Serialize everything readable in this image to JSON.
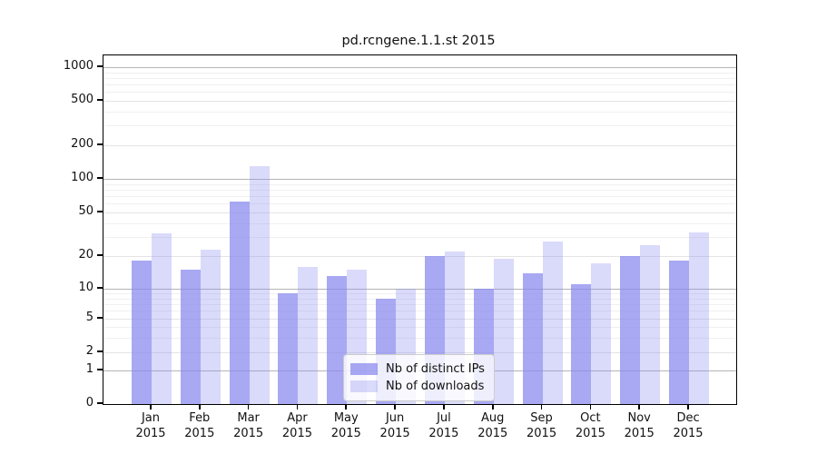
{
  "figure": {
    "background": "#ffffff"
  },
  "chart_data": {
    "type": "bar",
    "title": "pd.rcngene.1.1.st 2015",
    "xlabel": "",
    "ylabel": "",
    "year": "2015",
    "categories": [
      "Jan",
      "Feb",
      "Mar",
      "Apr",
      "May",
      "Jun",
      "Jul",
      "Aug",
      "Sep",
      "Oct",
      "Nov",
      "Dec"
    ],
    "series": [
      {
        "name": "Nb of distinct IPs",
        "color": "rgba(136,136,238,0.73)",
        "values": [
          18,
          15,
          63,
          9,
          13,
          8,
          20,
          10,
          14,
          11,
          20,
          18
        ]
      },
      {
        "name": "Nb of downloads",
        "color": "rgba(136,136,238,0.31)",
        "values": [
          32,
          23,
          130,
          16,
          15,
          10,
          22,
          19,
          27,
          17,
          25,
          33
        ]
      }
    ],
    "yticks": [
      0,
      1,
      2,
      5,
      10,
      20,
      50,
      100,
      200,
      500,
      1000
    ],
    "minor_grid_values": [
      3,
      4,
      6,
      7,
      8,
      9,
      30,
      40,
      60,
      70,
      80,
      90,
      300,
      400,
      600,
      700,
      800,
      900
    ],
    "light_grid_values": [
      2,
      5,
      20,
      50,
      200,
      500
    ],
    "major_grid_values": [
      1,
      10,
      100,
      1000
    ],
    "scale": "log-like with 1-2-5 ticks, linear segment from 0 to 1",
    "grid": "on",
    "legend_position": "lower center"
  },
  "colors": {
    "bar_base": "#8888ee",
    "grid_major": "#b5b5b5",
    "grid_light": "#e4e4e4",
    "grid_minor": "#f0f0f0",
    "axis": "#000000",
    "text": "#111111"
  }
}
